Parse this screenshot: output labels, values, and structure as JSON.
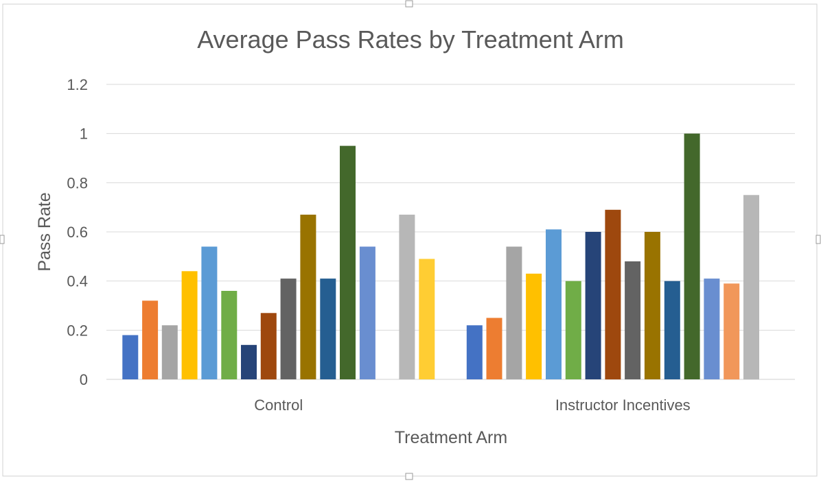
{
  "chart_data": {
    "type": "bar",
    "title": "Average Pass Rates by Treatment Arm",
    "xlabel": "Treatment Arm",
    "ylabel": "Pass Rate",
    "ylim": [
      0,
      1.2
    ],
    "yticks": [
      "0",
      "0.2",
      "0.4",
      "0.6",
      "0.8",
      "1",
      "1.2"
    ],
    "ytick_values": [
      0,
      0.2,
      0.4,
      0.6,
      0.8,
      1.0,
      1.2
    ],
    "grid": true,
    "legend": "none",
    "categories": [
      "Control",
      "Instructor Incentives"
    ],
    "series": [
      {
        "color": "#4472C4",
        "values": [
          0.18,
          0.22
        ]
      },
      {
        "color": "#ED7D31",
        "values": [
          0.32,
          0.25
        ]
      },
      {
        "color": "#A5A5A5",
        "values": [
          0.22,
          0.54
        ]
      },
      {
        "color": "#FFC000",
        "values": [
          0.44,
          0.43
        ]
      },
      {
        "color": "#5B9BD5",
        "values": [
          0.54,
          0.61
        ]
      },
      {
        "color": "#70AD47",
        "values": [
          0.36,
          0.4
        ]
      },
      {
        "color": "#264478",
        "values": [
          0.14,
          0.6
        ]
      },
      {
        "color": "#9E480E",
        "values": [
          0.27,
          0.69
        ]
      },
      {
        "color": "#636363",
        "values": [
          0.41,
          0.48
        ]
      },
      {
        "color": "#997300",
        "values": [
          0.67,
          0.6
        ]
      },
      {
        "color": "#255E91",
        "values": [
          0.41,
          0.4
        ]
      },
      {
        "color": "#43682B",
        "values": [
          0.95,
          1.0
        ]
      },
      {
        "color": "#698ED0",
        "values": [
          0.54,
          0.41
        ]
      },
      {
        "color": "#F1975A",
        "values": [
          null,
          0.39
        ]
      },
      {
        "color": "#B7B7B7",
        "values": [
          0.67,
          0.75
        ]
      },
      {
        "color": "#FFCD33",
        "values": [
          0.49,
          null
        ]
      }
    ]
  }
}
